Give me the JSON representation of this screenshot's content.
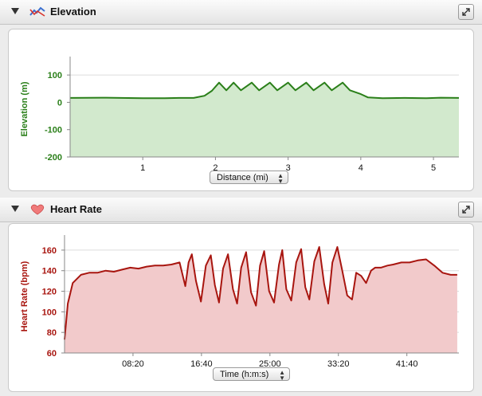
{
  "panels": {
    "elevation": {
      "title": "Elevation"
    },
    "heart": {
      "title": "Heart Rate"
    }
  },
  "selects": {
    "elevation_x": "Distance (mi)",
    "heart_x": "Time (h:m:s)"
  },
  "chart_data": [
    {
      "type": "area",
      "title": "",
      "xlabel": "Distance (mi)",
      "ylabel": "Elevation (m)",
      "xlim": [
        0,
        5.35
      ],
      "ylim": [
        -200,
        150
      ],
      "xticks": [
        1,
        2,
        3,
        4,
        5
      ],
      "yticks": [
        100,
        0,
        -100,
        -200
      ],
      "grid": true,
      "color": "#2a7f19",
      "fill": "#d2e9cd",
      "series": [
        {
          "x": [
            0,
            0.5,
            1,
            1.3,
            1.5,
            1.7,
            1.85,
            1.95,
            2.05,
            2.15,
            2.25,
            2.35,
            2.5,
            2.6,
            2.75,
            2.85,
            3.0,
            3.1,
            3.25,
            3.35,
            3.5,
            3.6,
            3.75,
            3.85,
            4.0,
            4.1,
            4.3,
            4.6,
            4.9,
            5.1,
            5.35
          ],
          "y": [
            16,
            17,
            15,
            15,
            16,
            16,
            24,
            42,
            72,
            44,
            72,
            44,
            72,
            44,
            72,
            44,
            72,
            44,
            72,
            44,
            72,
            44,
            72,
            44,
            30,
            18,
            15,
            16,
            15,
            17,
            16
          ]
        }
      ]
    },
    {
      "type": "area",
      "title": "",
      "xlabel": "Time (h:m:s)",
      "ylabel": "Heart Rate (bpm)",
      "xlim": [
        0,
        48
      ],
      "ylim": [
        60,
        170
      ],
      "xticks": [
        8.333,
        16.667,
        25,
        33.333,
        41.667
      ],
      "xticklabels": [
        "08:20",
        "16:40",
        "25:00",
        "33:20",
        "41:40"
      ],
      "yticks": [
        160,
        140,
        120,
        100,
        80,
        60
      ],
      "grid": true,
      "color": "#a8150f",
      "fill": "#f2cacb",
      "series": [
        {
          "x": [
            0,
            0.4,
            1,
            2,
            3,
            4,
            5,
            6,
            7,
            8,
            9,
            10,
            11,
            12,
            13,
            14,
            14.7,
            15.1,
            15.5,
            16.0,
            16.6,
            17.2,
            17.8,
            18.3,
            18.8,
            19.3,
            19.9,
            20.5,
            21.0,
            21.5,
            22.1,
            22.7,
            23.3,
            23.8,
            24.3,
            24.9,
            25.5,
            26.1,
            26.5,
            27.0,
            27.6,
            28.2,
            28.8,
            29.3,
            29.8,
            30.4,
            31.0,
            31.6,
            32.1,
            32.6,
            33.2,
            33.8,
            34.4,
            35.0,
            35.5,
            36.1,
            36.7,
            37.3,
            37.8,
            38.5,
            39.3,
            40,
            41,
            42,
            43,
            44,
            45,
            46,
            47,
            47.8
          ],
          "y": [
            73,
            108,
            128,
            136,
            138,
            138,
            140,
            139,
            141,
            143,
            142,
            144,
            145,
            145,
            146,
            148,
            125,
            148,
            156,
            130,
            110,
            145,
            155,
            126,
            109,
            142,
            156,
            122,
            108,
            143,
            158,
            119,
            106,
            145,
            159,
            120,
            109,
            146,
            160,
            122,
            111,
            148,
            161,
            124,
            112,
            149,
            163,
            127,
            108,
            148,
            163,
            140,
            116,
            112,
            138,
            135,
            128,
            140,
            143,
            143,
            145,
            146,
            148,
            148,
            150,
            151,
            145,
            138,
            136,
            136
          ]
        }
      ]
    }
  ]
}
